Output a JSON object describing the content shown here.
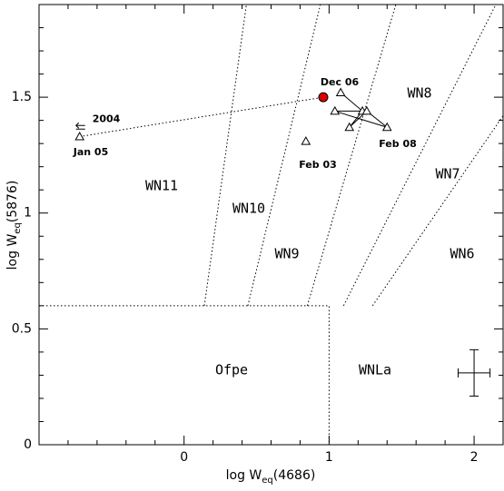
{
  "chart_data": {
    "type": "scatter",
    "x_label": {
      "main": "log W",
      "sub": "eq",
      "tail": "(4686)"
    },
    "y_label": {
      "main": "log W",
      "sub": "eq",
      "tail": "(5876)"
    },
    "xlim": [
      -1.0,
      2.2
    ],
    "ylim": [
      0,
      1.9
    ],
    "xticks": [
      0,
      1,
      2
    ],
    "yticks": [
      0,
      0.5,
      1,
      1.5
    ],
    "xminorticks": [
      -0.8,
      -0.6,
      -0.4,
      -0.2,
      0.2,
      0.4,
      0.6,
      0.8,
      1.2,
      1.4,
      1.6,
      1.8,
      2.2
    ],
    "yminorticks": [
      0.1,
      0.2,
      0.3,
      0.4,
      0.6,
      0.7,
      0.8,
      0.9,
      1.1,
      1.2,
      1.3,
      1.4,
      1.6,
      1.7,
      1.8
    ],
    "series": [
      {
        "marker": "triangle",
        "color": "#000000",
        "x": [
          -0.72,
          0.84,
          1.08,
          1.04,
          1.23,
          1.26,
          1.14,
          1.4
        ],
        "y": [
          1.33,
          1.31,
          1.52,
          1.44,
          1.44,
          1.44,
          1.37,
          1.37
        ]
      },
      {
        "marker": "circle",
        "color": "#dd0000",
        "x": [
          0.96
        ],
        "y": [
          1.5
        ]
      }
    ],
    "tracks": [
      {
        "style": "solid",
        "x": [
          1.08,
          1.23,
          1.14,
          1.26,
          1.4,
          1.04,
          1.26
        ],
        "y": [
          1.52,
          1.44,
          1.37,
          1.44,
          1.37,
          1.44,
          1.44
        ]
      },
      {
        "style": "dotted",
        "x": [
          -0.72,
          0.96
        ],
        "y": [
          1.33,
          1.5
        ]
      }
    ],
    "upper_limit": {
      "x": -0.72,
      "y": 1.37,
      "label": "2004"
    },
    "error_bar": {
      "x": 2.0,
      "y": 0.31,
      "xerr": 0.11,
      "yerr": 0.1
    },
    "boundaries": [
      {
        "x": [
          -1.0,
          1.0,
          1.0
        ],
        "y": [
          0.6,
          0.6,
          0
        ]
      },
      {
        "x": [
          0.14,
          0.43
        ],
        "y": [
          0.6,
          1.9
        ]
      },
      {
        "x": [
          0.44,
          0.94
        ],
        "y": [
          0.6,
          1.9
        ]
      },
      {
        "x": [
          0.85,
          1.46
        ],
        "y": [
          0.6,
          1.9
        ]
      },
      {
        "x": [
          1.1,
          2.15
        ],
        "y": [
          0.6,
          1.9
        ]
      },
      {
        "x": [
          1.3,
          2.2
        ],
        "y": [
          0.6,
          1.42
        ]
      }
    ],
    "regions": [
      "WN11",
      "WN10",
      "WN9",
      "WN8",
      "WN7",
      "WN6",
      "Ofpe",
      "WNLa"
    ],
    "annotations": [
      "Jan 05",
      "Feb 03",
      "Dec 06",
      "Feb 08"
    ]
  }
}
